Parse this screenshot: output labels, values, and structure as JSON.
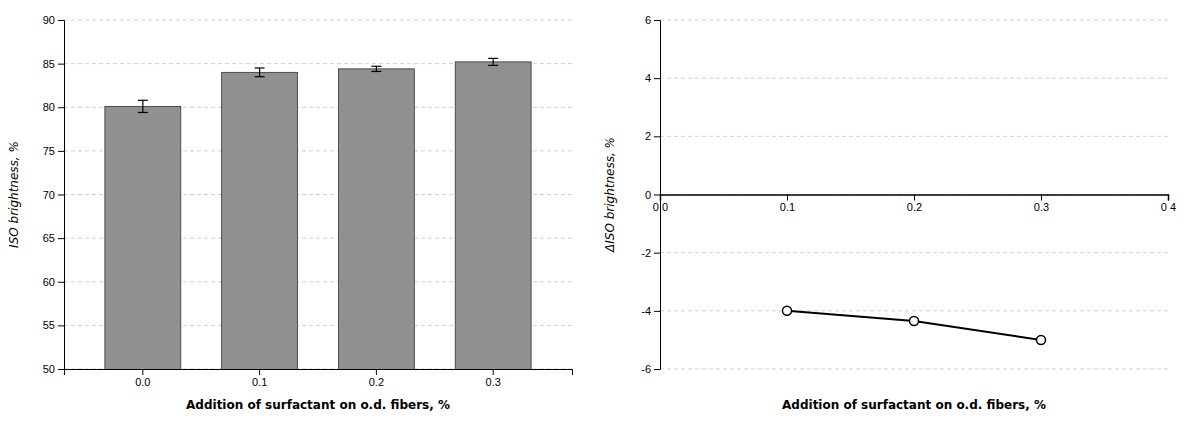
{
  "chart_data": [
    {
      "type": "bar",
      "categories": [
        "0.0",
        "0.1",
        "0.2",
        "0.3"
      ],
      "values": [
        80.1,
        84.0,
        84.4,
        85.2
      ],
      "errors": [
        0.7,
        0.5,
        0.3,
        0.4
      ],
      "color": "#909090",
      "xlabel": "Addition of surfactant on o.d. fibers, %",
      "ylabel": "ISO brightness, %",
      "ylim": [
        50,
        90
      ],
      "yticks": [
        50,
        55,
        60,
        65,
        70,
        75,
        80,
        85,
        90
      ],
      "grid": true
    },
    {
      "type": "line",
      "x": [
        0.1,
        0.2,
        0.3
      ],
      "values": [
        -4.0,
        -4.35,
        -5.0
      ],
      "color": "#000000",
      "marker": "circle",
      "xlabel": "Addition of surfactant on o.d. fibers, %",
      "ylabel": "ΔISO brightness, %",
      "xlim": [
        0.0,
        0.4
      ],
      "xticks": [
        {
          "value": 0.0,
          "label": "0 0"
        },
        0.1,
        0.2,
        0.3,
        {
          "value": 0.4,
          "label": "0 4"
        }
      ],
      "ylim": [
        -6,
        6
      ],
      "yticks": [
        -6,
        -4,
        -2,
        0,
        2,
        4,
        6
      ],
      "grid": true
    }
  ]
}
